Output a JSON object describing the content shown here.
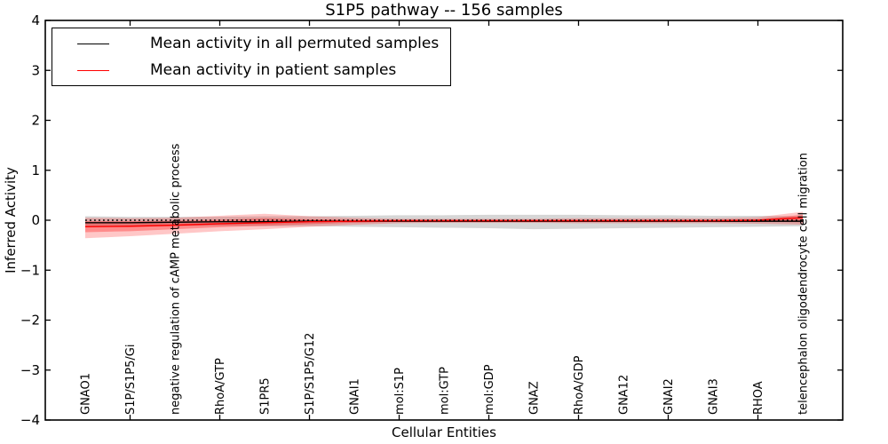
{
  "figure": {
    "title": "S1P5 pathway -- 156 samples",
    "xlabel": "Cellular Entities",
    "ylabel": "Inferred Activity"
  },
  "legend": {
    "items": [
      {
        "label": "Mean activity in all permuted samples",
        "color": "#000000"
      },
      {
        "label": "Mean activity in patient samples",
        "color": "#ff0000"
      }
    ]
  },
  "chart_data": {
    "type": "line",
    "title": "S1P5 pathway -- 156 samples",
    "xlabel": "Cellular Entities",
    "ylabel": "Inferred Activity",
    "ylim": [
      -4,
      4
    ],
    "yticks": [
      -4,
      -3,
      -2,
      -1,
      0,
      1,
      2,
      3,
      4
    ],
    "grid": false,
    "legend_position": "upper left",
    "reference_line": {
      "y": 0,
      "style": "dotted",
      "color": "#000000"
    },
    "categories": [
      "GNAO1",
      "S1P/S1P5/Gi",
      "negative regulation of cAMP metabolic process",
      "RhoA/GTP",
      "S1PR5",
      "S1P/S1P5/G12",
      "GNAI1",
      "mol:S1P",
      "mol:GTP",
      "mol:GDP",
      "GNAZ",
      "RhoA/GDP",
      "GNA12",
      "GNAI2",
      "GNAI3",
      "RHOA",
      "telencephalon oligodendrocyte cell migration"
    ],
    "series": [
      {
        "name": "Mean activity in all permuted samples",
        "color": "#000000",
        "band_color": "#999999",
        "band_opacity": 0.4,
        "values": [
          -0.05,
          -0.05,
          -0.04,
          -0.03,
          -0.03,
          -0.02,
          -0.02,
          -0.02,
          -0.02,
          -0.02,
          -0.02,
          -0.02,
          -0.02,
          -0.02,
          -0.02,
          -0.02,
          -0.02
        ],
        "band_upper": [
          0.08,
          0.07,
          0.07,
          0.07,
          0.08,
          0.08,
          0.09,
          0.1,
          0.1,
          0.11,
          0.11,
          0.11,
          0.1,
          0.1,
          0.09,
          0.09,
          0.08
        ],
        "band_lower": [
          -0.12,
          -0.11,
          -0.11,
          -0.11,
          -0.12,
          -0.12,
          -0.13,
          -0.14,
          -0.15,
          -0.16,
          -0.18,
          -0.17,
          -0.16,
          -0.15,
          -0.14,
          -0.13,
          -0.12
        ]
      },
      {
        "name": "Mean activity in patient samples",
        "color": "#ff0000",
        "band_color": "#ff0000",
        "band_opacity": 0.22,
        "values": [
          -0.13,
          -0.12,
          -0.1,
          -0.07,
          -0.05,
          -0.03,
          -0.02,
          -0.01,
          -0.01,
          -0.01,
          -0.01,
          -0.01,
          -0.01,
          -0.01,
          -0.01,
          0.0,
          0.05
        ],
        "band_upper": [
          0.05,
          0.04,
          0.05,
          0.09,
          0.13,
          0.08,
          0.05,
          0.03,
          0.03,
          0.03,
          0.03,
          0.04,
          0.04,
          0.04,
          0.04,
          0.06,
          0.17
        ],
        "band_lower": [
          -0.36,
          -0.32,
          -0.27,
          -0.22,
          -0.18,
          -0.13,
          -0.09,
          -0.06,
          -0.05,
          -0.05,
          -0.05,
          -0.06,
          -0.06,
          -0.06,
          -0.06,
          -0.07,
          -0.09
        ],
        "band_inner_upper": [
          -0.02,
          -0.02,
          -0.01,
          0.01,
          0.04,
          0.02,
          0.01,
          0.01,
          0.01,
          0.01,
          0.01,
          0.01,
          0.01,
          0.01,
          0.01,
          0.02,
          0.11
        ],
        "band_inner_lower": [
          -0.24,
          -0.22,
          -0.18,
          -0.14,
          -0.11,
          -0.08,
          -0.05,
          -0.03,
          -0.03,
          -0.03,
          -0.03,
          -0.03,
          -0.03,
          -0.03,
          -0.03,
          -0.03,
          -0.04
        ],
        "band_inner_opacity": 0.3
      }
    ]
  }
}
